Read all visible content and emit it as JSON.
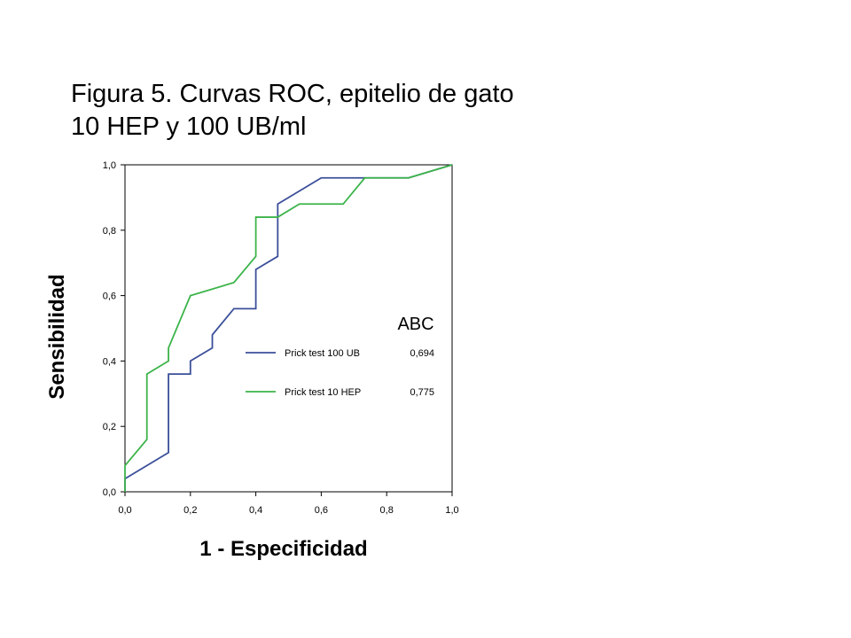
{
  "title_line1": "Figura 5. Curvas ROC, epitelio de gato",
  "title_line2": "10 HEP y 100 UB/ml",
  "chart_data": {
    "type": "line",
    "xlabel": "1 - Especificidad",
    "ylabel": "Sensibilidad",
    "xlim": [
      0,
      1
    ],
    "ylim": [
      0,
      1
    ],
    "x_ticks": [
      "0,0",
      "0,2",
      "0,4",
      "0,6",
      "0,8",
      "1,0"
    ],
    "y_ticks": [
      "0,0",
      "0,2",
      "0,4",
      "0,6",
      "0,8",
      "1,0"
    ],
    "grid": false,
    "legend": {
      "title": "ABC",
      "placement": "center-right",
      "entries": [
        {
          "name": "Prick test 100 UB",
          "value": "0,694",
          "color": "#3b4f9a"
        },
        {
          "name": "Prick test 10 HEP",
          "value": "0,775",
          "color": "#3cb44a"
        }
      ]
    },
    "series": [
      {
        "name": "Prick test 100 UB",
        "color": "#3b4f9a",
        "points": [
          [
            0.0,
            0.0
          ],
          [
            0.0,
            0.04
          ],
          [
            0.133,
            0.12
          ],
          [
            0.133,
            0.36
          ],
          [
            0.2,
            0.36
          ],
          [
            0.2,
            0.4
          ],
          [
            0.267,
            0.44
          ],
          [
            0.267,
            0.48
          ],
          [
            0.333,
            0.56
          ],
          [
            0.4,
            0.56
          ],
          [
            0.4,
            0.68
          ],
          [
            0.467,
            0.72
          ],
          [
            0.467,
            0.88
          ],
          [
            0.6,
            0.96
          ],
          [
            0.733,
            0.96
          ],
          [
            0.867,
            0.96
          ],
          [
            1.0,
            1.0
          ]
        ]
      },
      {
        "name": "Prick test 10 HEP",
        "color": "#3cb44a",
        "points": [
          [
            0.0,
            0.0
          ],
          [
            0.0,
            0.08
          ],
          [
            0.067,
            0.16
          ],
          [
            0.067,
            0.36
          ],
          [
            0.133,
            0.4
          ],
          [
            0.133,
            0.44
          ],
          [
            0.2,
            0.6
          ],
          [
            0.333,
            0.64
          ],
          [
            0.4,
            0.72
          ],
          [
            0.4,
            0.84
          ],
          [
            0.467,
            0.84
          ],
          [
            0.533,
            0.88
          ],
          [
            0.667,
            0.88
          ],
          [
            0.733,
            0.96
          ],
          [
            0.867,
            0.96
          ],
          [
            1.0,
            1.0
          ]
        ]
      }
    ]
  }
}
